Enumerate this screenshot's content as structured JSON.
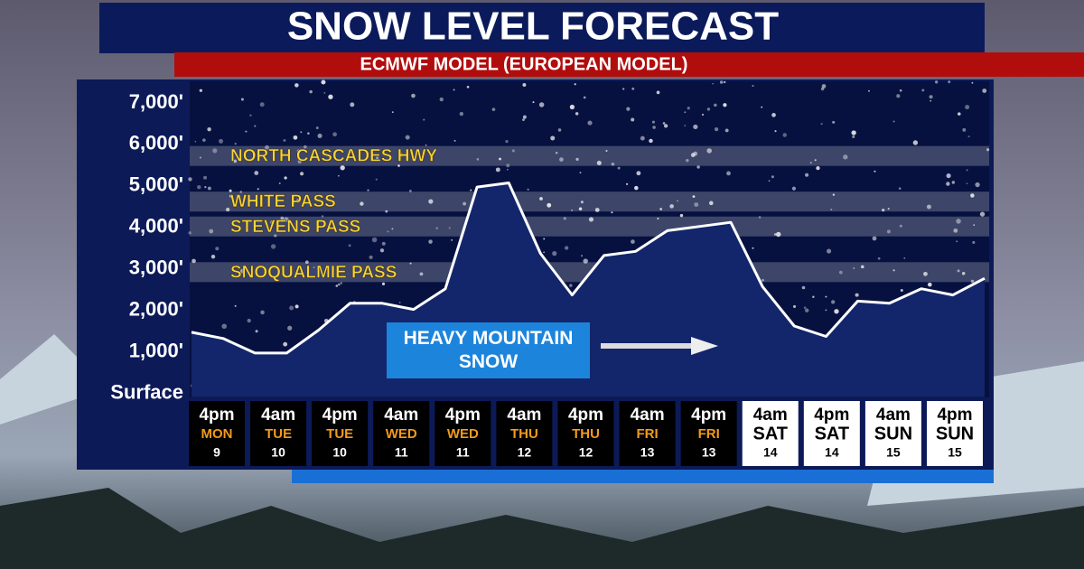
{
  "chart_data": {
    "type": "line",
    "title": "SNOW LEVEL FORECAST",
    "subtitle": "ECMWF MODEL (EUROPEAN MODEL)",
    "ylim": [
      0,
      7500
    ],
    "yticks": [
      {
        "value": 7000,
        "label": "7,000'"
      },
      {
        "value": 6000,
        "label": "6,000'"
      },
      {
        "value": 5000,
        "label": "5,000'"
      },
      {
        "value": 4000,
        "label": "4,000'"
      },
      {
        "value": 3000,
        "label": "3,000'"
      },
      {
        "value": 2000,
        "label": "2,000'"
      },
      {
        "value": 1000,
        "label": "1,000'"
      },
      {
        "value": 0,
        "label": "Surface"
      }
    ],
    "values": [
      1450,
      1300,
      950,
      950,
      1500,
      2150,
      2150,
      2000,
      2500,
      4950,
      5050,
      3350,
      2350,
      3300,
      3400,
      3900,
      4000,
      4100,
      2550,
      1600,
      1350,
      2200,
      2150,
      2500,
      2350,
      2750
    ],
    "color": "#ffffff",
    "area_color": "#13266b",
    "bands": [
      {
        "label": "NORTH CASCADES HWY",
        "value": 5700
      },
      {
        "label": "WHITE PASS",
        "value": 4600
      },
      {
        "label": "STEVENS PASS",
        "value": 4000
      },
      {
        "label": "SNOQUALMIE PASS",
        "value": 2900
      }
    ],
    "band_label_color": "#f6d43c",
    "annotation": "HEAVY MOUNTAIN SNOW",
    "x_labels": [
      {
        "time": "4pm",
        "day": "MON",
        "date": "9",
        "box_color": "#000000"
      },
      {
        "time": "4am",
        "day": "TUE",
        "date": "10",
        "box_color": "#000000"
      },
      {
        "time": "4pm",
        "day": "TUE",
        "date": "10",
        "box_color": "#000000"
      },
      {
        "time": "4am",
        "day": "WED",
        "date": "11",
        "box_color": "#000000"
      },
      {
        "time": "4pm",
        "day": "WED",
        "date": "11",
        "box_color": "#000000"
      },
      {
        "time": "4am",
        "day": "THU",
        "date": "12",
        "box_color": "#000000"
      },
      {
        "time": "4pm",
        "day": "THU",
        "date": "12",
        "box_color": "#000000"
      },
      {
        "time": "4am",
        "day": "FRI",
        "date": "13",
        "box_color": "#000000"
      },
      {
        "time": "4pm",
        "day": "FRI",
        "date": "13",
        "box_color": "#000000"
      },
      {
        "time": "4am",
        "day": "SAT",
        "date": "14",
        "box_color": "#ffffff"
      },
      {
        "time": "4pm",
        "day": "SAT",
        "date": "14",
        "box_color": "#ffffff"
      },
      {
        "time": "4am",
        "day": "SUN",
        "date": "15",
        "box_color": "#ffffff"
      },
      {
        "time": "4pm",
        "day": "SUN",
        "date": "15",
        "box_color": "#ffffff"
      }
    ]
  }
}
